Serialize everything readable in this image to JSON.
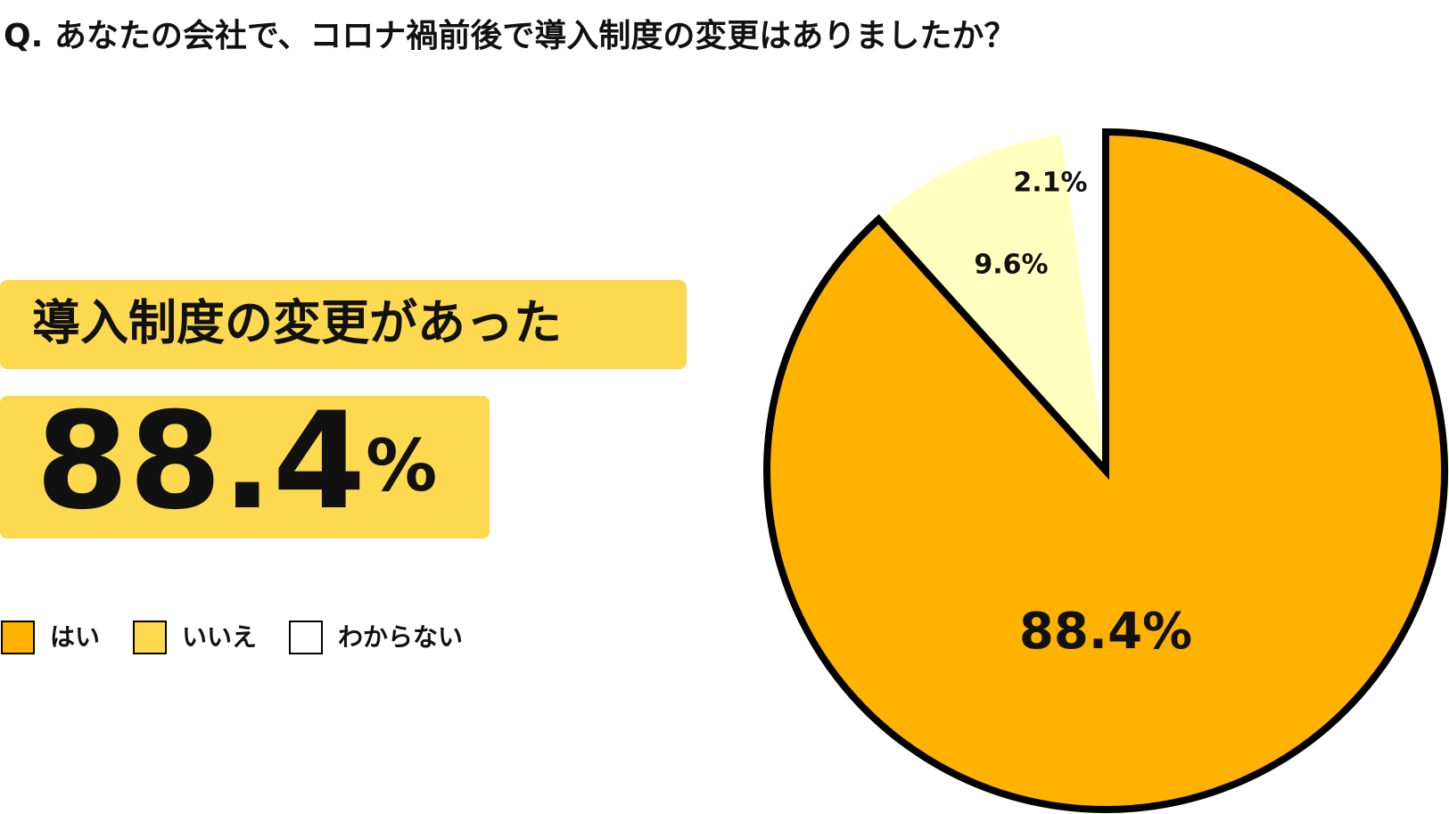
{
  "chart_data": {
    "type": "pie",
    "title": "Q. あなたの会社で、コロナ禍前後で導入制度の変更はありましたか？",
    "highlight": {
      "label": "導入制度の変更があった",
      "value_label": "88.4%"
    },
    "categories": [
      "はい",
      "いいえ",
      "わからない"
    ],
    "values": [
      88.4,
      9.6,
      2.1
    ],
    "value_labels": [
      "88.4%",
      "9.6%",
      "2.1%"
    ],
    "colors": [
      "#FFB300",
      "#FFFFC0",
      "#FFFFFF"
    ],
    "legend_colors": [
      "#FFB300",
      "#FDD94F",
      "#FFFFFF"
    ]
  }
}
